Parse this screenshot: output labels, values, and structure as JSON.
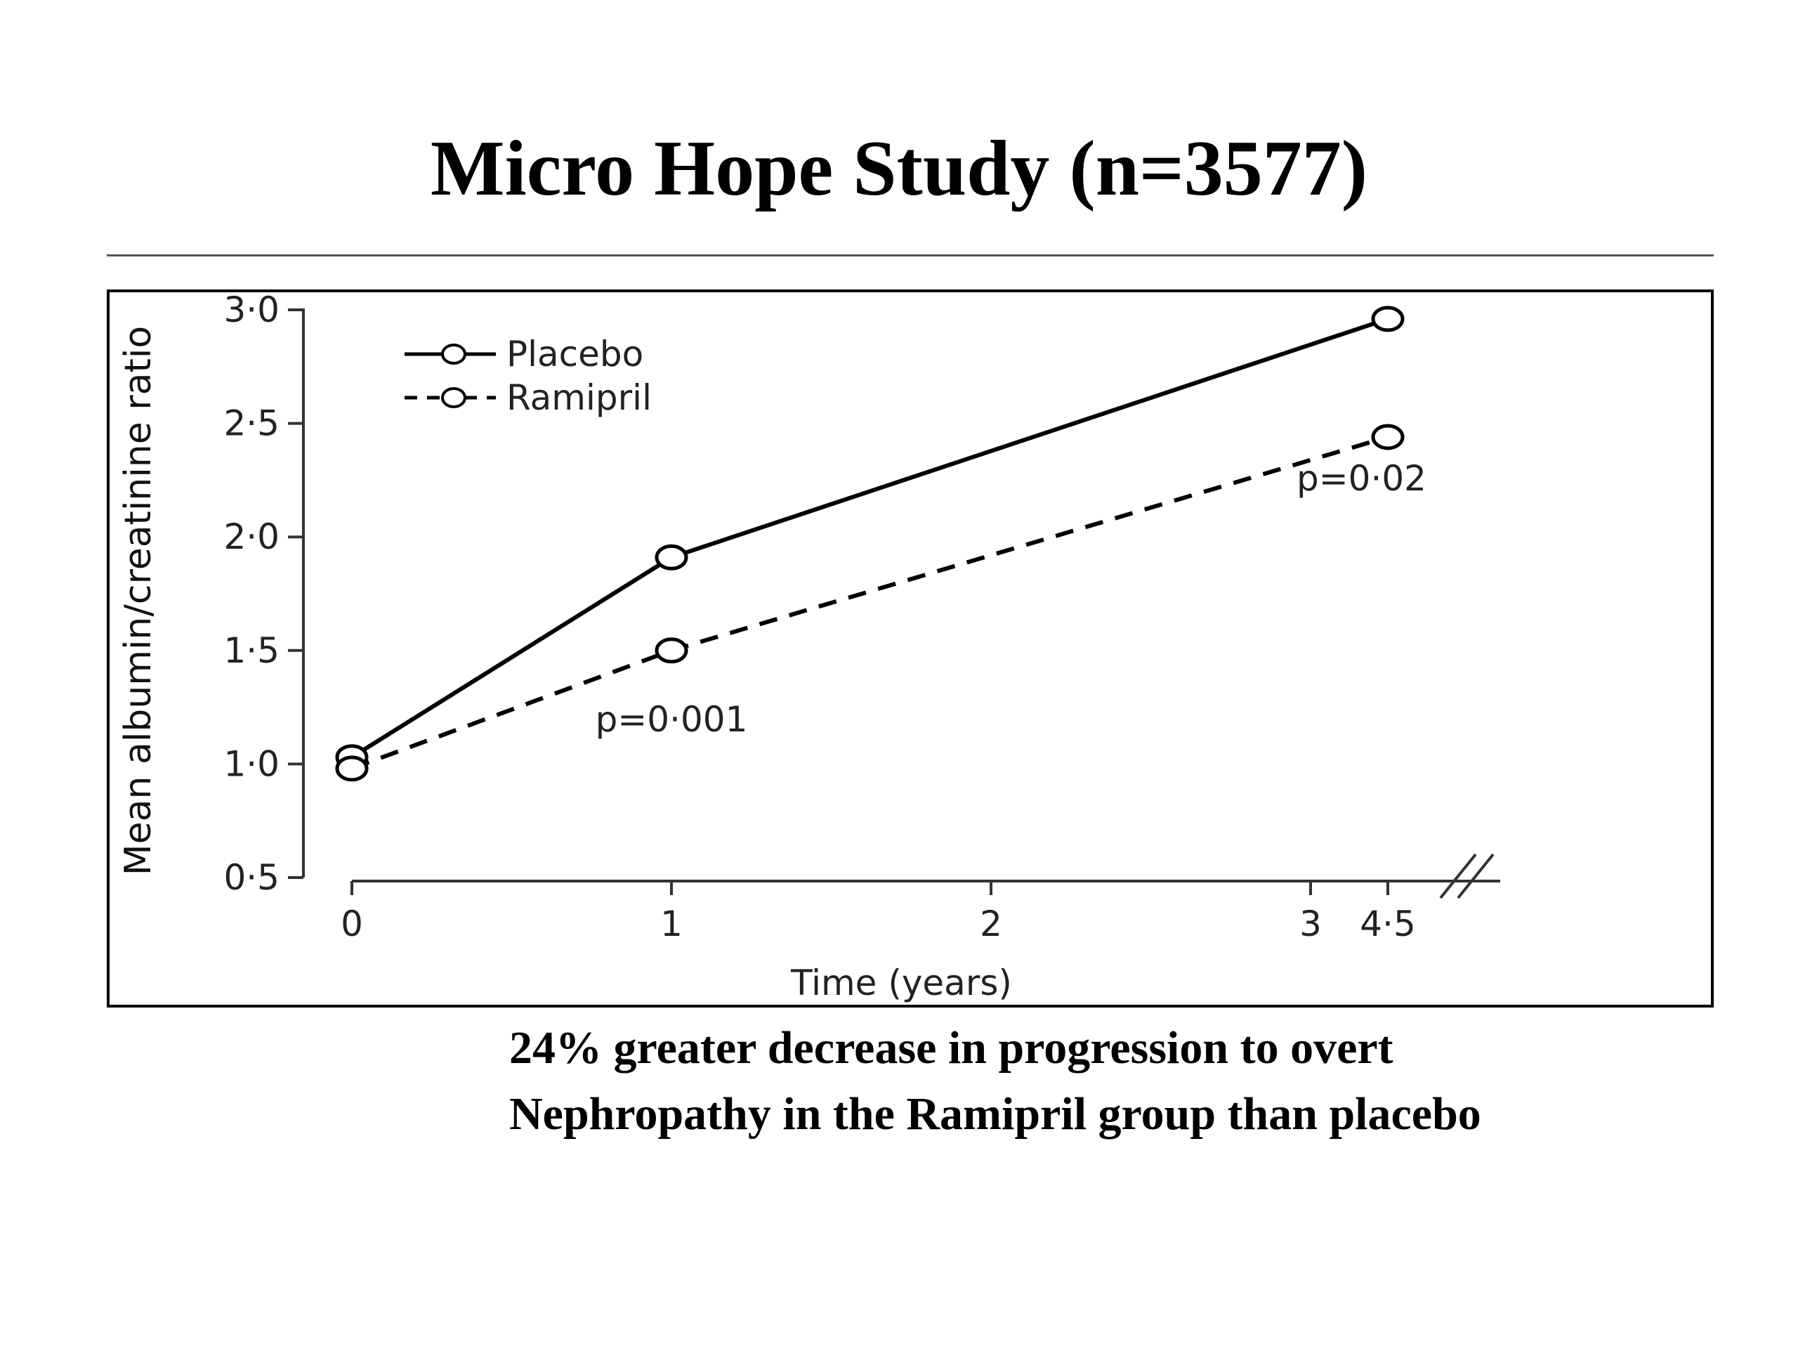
{
  "slide": {
    "title": "Micro Hope Study (n=3577)",
    "caption_line1": "24% greater decrease in progression to overt",
    "caption_line2": "Nephropathy in the Ramipril group than placebo"
  },
  "chart_data": {
    "type": "line",
    "xlabel": "Time (years)",
    "ylabel": "Mean albumin/creatinine ratio",
    "ylim": [
      0.5,
      3.0
    ],
    "xlim": [
      0,
      4.5
    ],
    "x_ticks": [
      0,
      1,
      2,
      3,
      4.5
    ],
    "x_tick_labels": [
      "0",
      "1",
      "2",
      "3",
      "4·5"
    ],
    "y_ticks": [
      0.5,
      1.0,
      1.5,
      2.0,
      2.5,
      3.0
    ],
    "y_tick_labels": [
      "0·5",
      "1·0",
      "1·5",
      "2·0",
      "2·5",
      "3·0"
    ],
    "axis_break_between": [
      3,
      4.5
    ],
    "grid": false,
    "legend_position": "top-left",
    "series": [
      {
        "name": "Placebo",
        "line_style": "solid",
        "marker": "open-circle",
        "color": "#000000",
        "x": [
          0,
          1,
          4.5
        ],
        "values": [
          1.03,
          1.91,
          2.96
        ]
      },
      {
        "name": "Ramipril",
        "line_style": "dashed",
        "marker": "open-circle",
        "color": "#000000",
        "x": [
          0,
          1,
          4.5
        ],
        "values": [
          0.98,
          1.5,
          2.44
        ]
      }
    ],
    "annotations": [
      {
        "text": "p=0·001",
        "x": 1,
        "y": 1.2
      },
      {
        "text": "p=0·02",
        "x": 4.5,
        "y": 2.26
      }
    ]
  }
}
